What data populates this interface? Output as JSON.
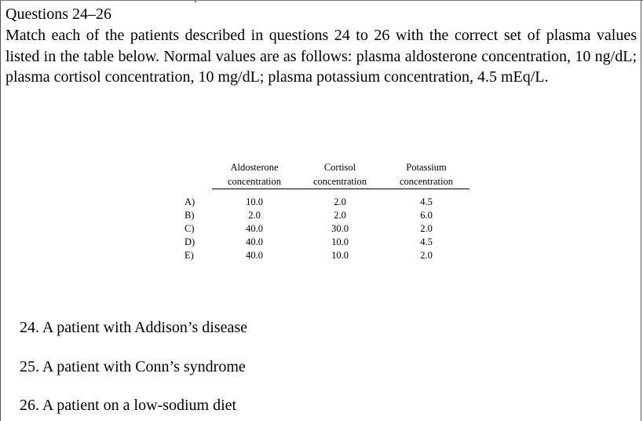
{
  "header": {
    "section_title": "Questions 24–26",
    "intro": "Match each of the patients described in questions 24 to 26 with the correct set of plasma values listed in the table below. Normal values are as follows: plasma aldosterone concentration, 10 ng/dL; plasma cortisol concentration, 10 mg/dL; plasma potassium concentration, 4.5 mEq/L."
  },
  "table": {
    "columns": [
      {
        "line1": "Aldosterone",
        "line2": "concentration"
      },
      {
        "line1": "Cortisol",
        "line2": "concentration"
      },
      {
        "line1": "Potassium",
        "line2": "concentration"
      }
    ],
    "rows": [
      {
        "option": "A)",
        "aldosterone": "10.0",
        "cortisol": "2.0",
        "potassium": "4.5"
      },
      {
        "option": "B)",
        "aldosterone": "2.0",
        "cortisol": "2.0",
        "potassium": "6.0"
      },
      {
        "option": "C)",
        "aldosterone": "40.0",
        "cortisol": "30.0",
        "potassium": "2.0"
      },
      {
        "option": "D)",
        "aldosterone": "40.0",
        "cortisol": "10.0",
        "potassium": "4.5"
      },
      {
        "option": "E)",
        "aldosterone": "40.0",
        "cortisol": "10.0",
        "potassium": "2.0"
      }
    ]
  },
  "questions": [
    "24. A patient with Addison’s disease",
    "25. A patient with Conn’s syndrome",
    "26. A patient on a low-sodium diet"
  ]
}
